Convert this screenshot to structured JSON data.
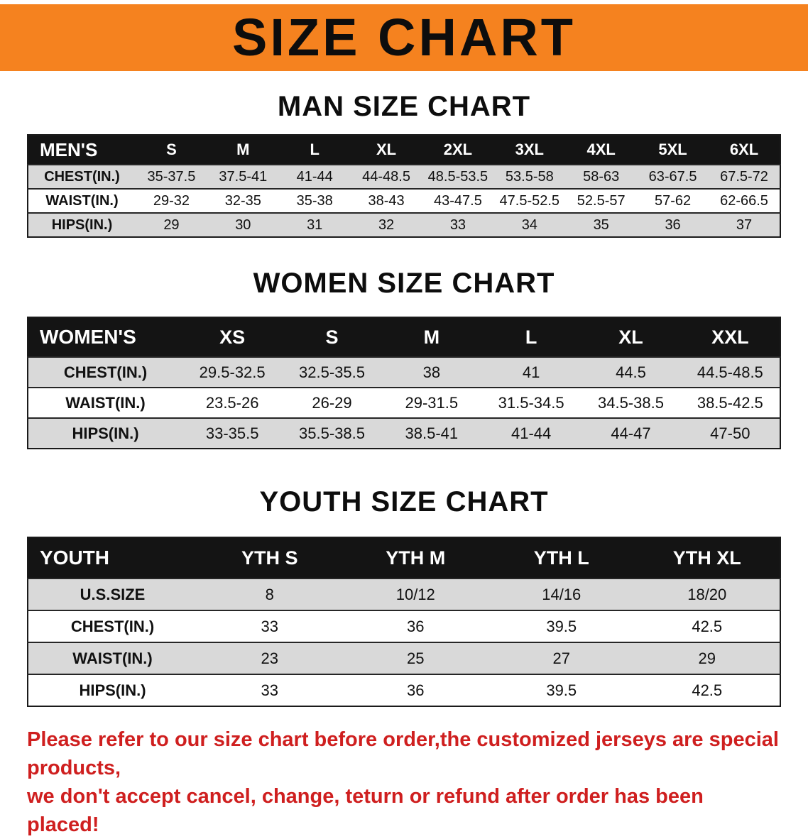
{
  "banner": {
    "title": "SIZE CHART"
  },
  "colors": {
    "banner_orange": "#f5821f",
    "table_header_black": "#141414",
    "row_gray": "#d9d9d9",
    "notice_red": "#cf1f1f"
  },
  "sections": [
    {
      "id": "men",
      "heading": "MAN SIZE CHART",
      "table": {
        "header": [
          "MEN'S",
          "S",
          "M",
          "L",
          "XL",
          "2XL",
          "3XL",
          "4XL",
          "5XL",
          "6XL"
        ],
        "rows": [
          [
            "CHEST(IN.)",
            "35-37.5",
            "37.5-41",
            "41-44",
            "44-48.5",
            "48.5-53.5",
            "53.5-58",
            "58-63",
            "63-67.5",
            "67.5-72"
          ],
          [
            "WAIST(IN.)",
            "29-32",
            "32-35",
            "35-38",
            "38-43",
            "43-47.5",
            "47.5-52.5",
            "52.5-57",
            "57-62",
            "62-66.5"
          ],
          [
            "HIPS(IN.)",
            "29",
            "30",
            "31",
            "32",
            "33",
            "34",
            "35",
            "36",
            "37"
          ]
        ]
      }
    },
    {
      "id": "women",
      "heading": "WOMEN SIZE CHART",
      "table": {
        "header": [
          "WOMEN'S",
          "XS",
          "S",
          "M",
          "L",
          "XL",
          "XXL"
        ],
        "rows": [
          [
            "CHEST(IN.)",
            "29.5-32.5",
            "32.5-35.5",
            "38",
            "41",
            "44.5",
            "44.5-48.5"
          ],
          [
            "WAIST(IN.)",
            "23.5-26",
            "26-29",
            "29-31.5",
            "31.5-34.5",
            "34.5-38.5",
            "38.5-42.5"
          ],
          [
            "HIPS(IN.)",
            "33-35.5",
            "35.5-38.5",
            "38.5-41",
            "41-44",
            "44-47",
            "47-50"
          ]
        ]
      }
    },
    {
      "id": "youth",
      "heading": "YOUTH SIZE CHART",
      "table": {
        "header": [
          "YOUTH",
          "YTH S",
          "YTH M",
          "YTH L",
          "YTH XL"
        ],
        "rows": [
          [
            "U.S.SIZE",
            "8",
            "10/12",
            "14/16",
            "18/20"
          ],
          [
            "CHEST(IN.)",
            "33",
            "36",
            "39.5",
            "42.5"
          ],
          [
            "WAIST(IN.)",
            "23",
            "25",
            "27",
            "29"
          ],
          [
            "HIPS(IN.)",
            "33",
            "36",
            "39.5",
            "42.5"
          ]
        ]
      }
    }
  ],
  "notice": {
    "line1": "Please refer to our size chart before order,the customized jerseys are special products,",
    "line2": "we don't accept cancel, change, teturn or refund after order has been placed!"
  }
}
